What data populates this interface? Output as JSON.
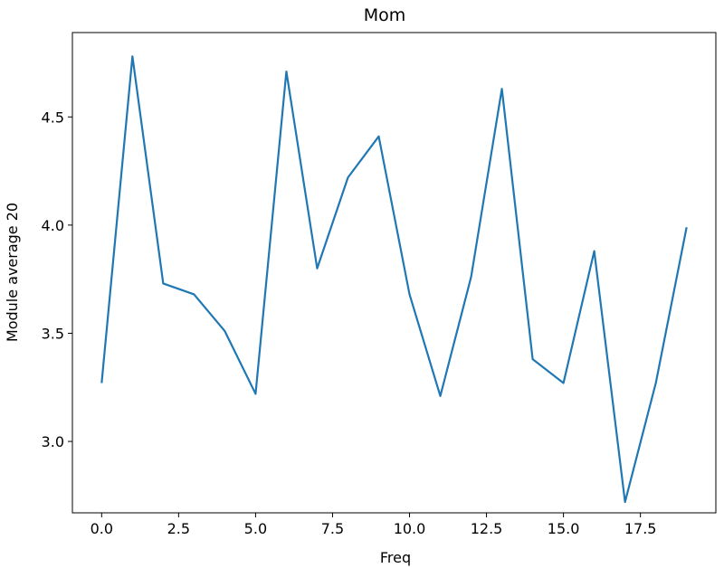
{
  "chart_data": {
    "type": "line",
    "title": "Mom",
    "xlabel": "Freq",
    "ylabel": "Module average 20",
    "xlim": [
      -0.95,
      19.95
    ],
    "ylim": [
      2.67,
      4.89
    ],
    "xticks": [
      0.0,
      2.5,
      5.0,
      7.5,
      10.0,
      12.5,
      15.0,
      17.5
    ],
    "xtick_labels": [
      "0.0",
      "2.5",
      "5.0",
      "7.5",
      "10.0",
      "12.5",
      "15.0",
      "17.5"
    ],
    "yticks": [
      3.0,
      3.5,
      4.0,
      4.5
    ],
    "ytick_labels": [
      "3.0",
      "3.5",
      "4.0",
      "4.5"
    ],
    "grid": false,
    "series": [
      {
        "color": "#1f77b4",
        "x": [
          0,
          1,
          2,
          3,
          4,
          5,
          6,
          7,
          8,
          9,
          10,
          11,
          12,
          13,
          14,
          15,
          16,
          17,
          18,
          19
        ],
        "y": [
          3.27,
          4.78,
          3.73,
          3.68,
          3.51,
          3.22,
          4.71,
          3.8,
          4.22,
          4.41,
          3.68,
          3.21,
          3.76,
          4.63,
          3.38,
          3.27,
          3.88,
          2.72,
          3.27,
          3.99
        ]
      }
    ]
  }
}
